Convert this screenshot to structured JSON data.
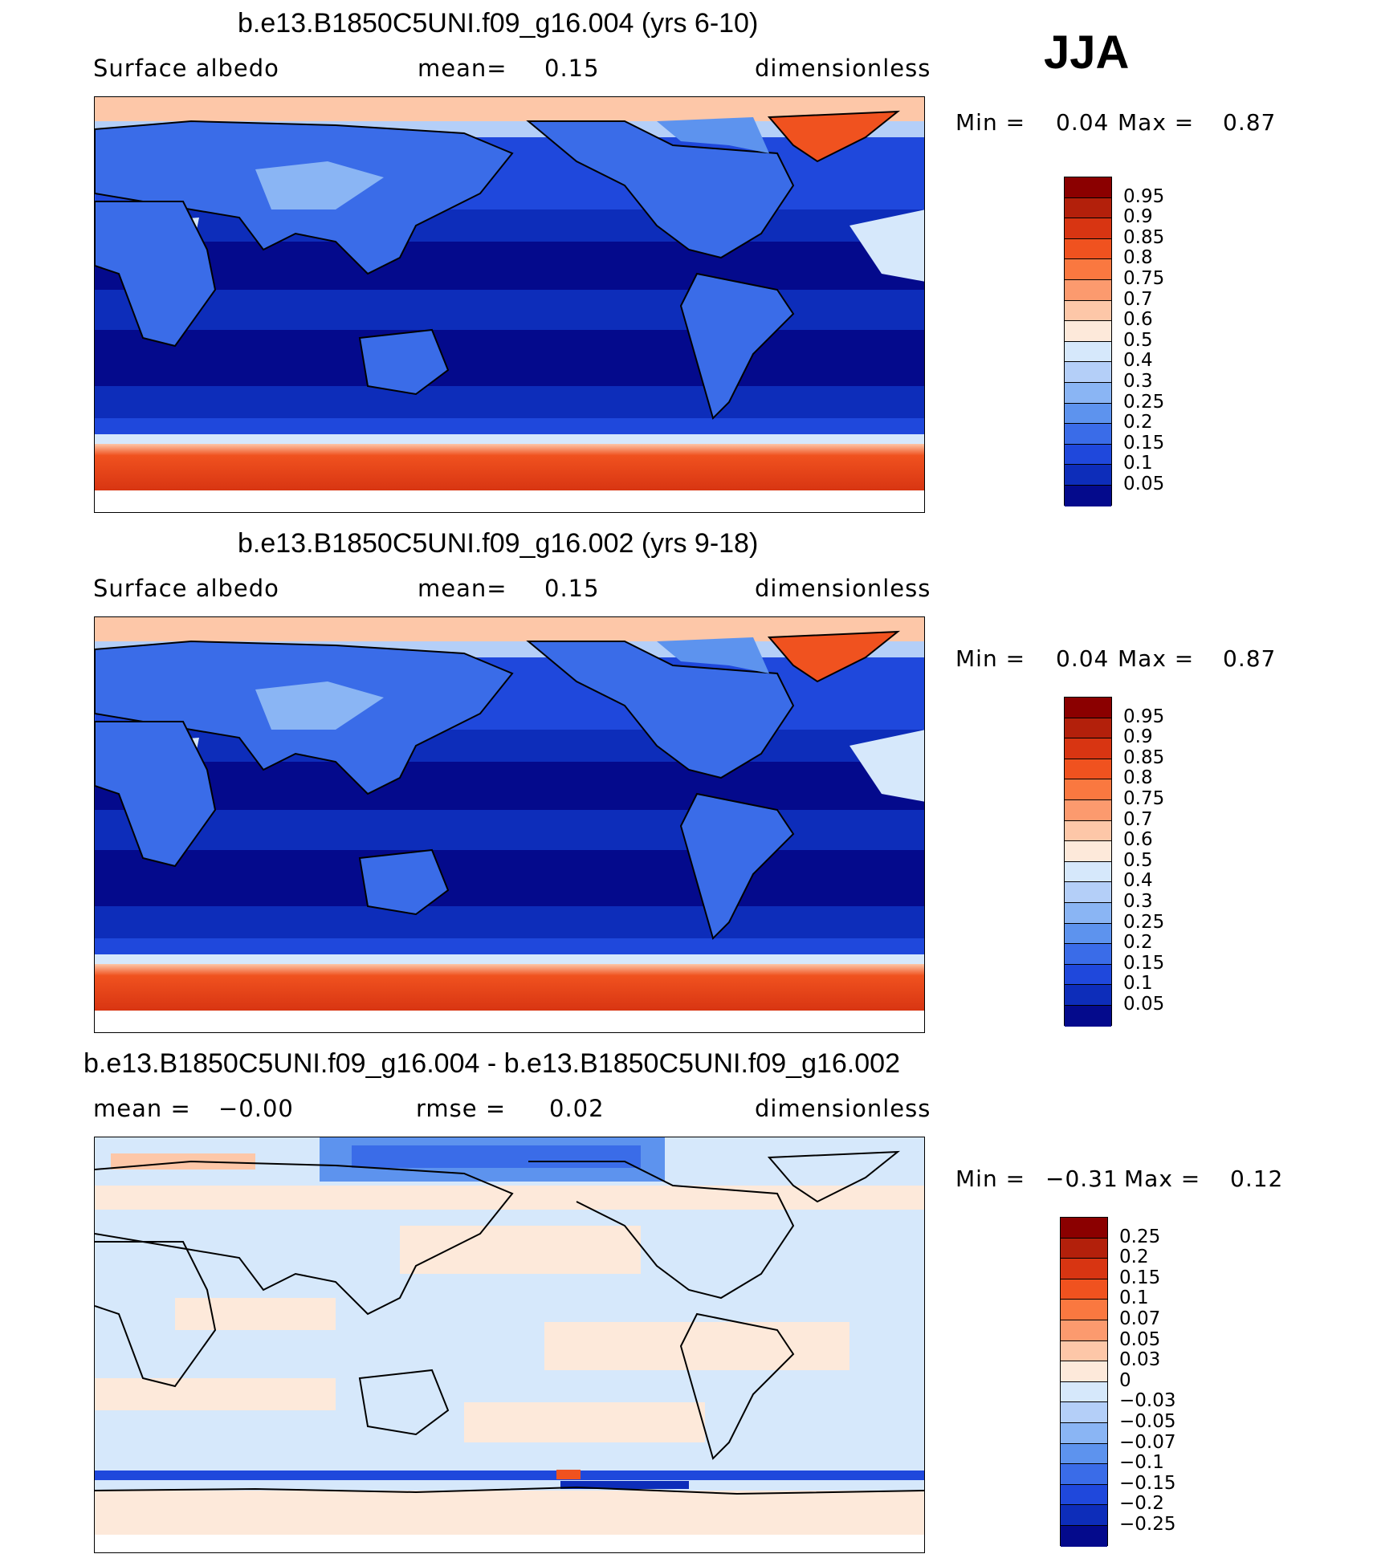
{
  "season": "JJA",
  "panels": [
    {
      "title": "b.e13.B1850C5UNI.f09_g16.004 (yrs 6-10)",
      "variable": "Surface albedo",
      "stat_label": "mean=",
      "stat_value": "0.15",
      "units": "dimensionless",
      "min_label": "Min =",
      "min_value": "0.04",
      "max_label": "Max =",
      "max_value": "0.87"
    },
    {
      "title": "b.e13.B1850C5UNI.f09_g16.002 (yrs 9-18)",
      "variable": "Surface albedo",
      "stat_label": "mean=",
      "stat_value": "0.15",
      "units": "dimensionless",
      "min_label": "Min =",
      "min_value": "0.04",
      "max_label": "Max =",
      "max_value": "0.87"
    },
    {
      "title": "b.e13.B1850C5UNI.f09_g16.004 - b.e13.B1850C5UNI.f09_g16.002",
      "mean_label": "mean =",
      "mean_value": "−0.00",
      "rmse_label": "rmse =",
      "rmse_value": "0.02",
      "units": "dimensionless",
      "min_label": "Min =",
      "min_value": "−0.31",
      "max_label": "Max =",
      "max_value": "0.12"
    }
  ],
  "colorbars": {
    "field": {
      "colors": [
        "#8b0000",
        "#b3200b",
        "#d83512",
        "#f0521f",
        "#fa7840",
        "#fc9a6e",
        "#fdc7a8",
        "#fde9da",
        "#d6e8fb",
        "#b4cff8",
        "#8ab5f4",
        "#5d93ee",
        "#3a6ce8",
        "#1f48dc",
        "#0d2dba",
        "#040a8c"
      ],
      "labels": [
        "0.95",
        "0.9",
        "0.85",
        "0.8",
        "0.75",
        "0.7",
        "0.6",
        "0.5",
        "0.4",
        "0.3",
        "0.25",
        "0.2",
        "0.15",
        "0.1",
        "0.05"
      ]
    },
    "diff": {
      "colors": [
        "#8b0000",
        "#b3200b",
        "#d83512",
        "#f0521f",
        "#fa7840",
        "#fc9a6e",
        "#fdc7a8",
        "#fde9da",
        "#d6e8fb",
        "#b4cff8",
        "#8ab5f4",
        "#5d93ee",
        "#3a6ce8",
        "#1f48dc",
        "#0d2dba",
        "#040a8c"
      ],
      "labels": [
        "0.25",
        "0.2",
        "0.15",
        "0.1",
        "0.07",
        "0.05",
        "0.03",
        "0",
        "−0.03",
        "−0.05",
        "−0.07",
        "−0.1",
        "−0.15",
        "−0.2",
        "−0.25"
      ]
    }
  },
  "map_colors": {
    "ocean_deep": "#040a8c",
    "ocean_mid": "#0d2dba",
    "ocean_light": "#1f48dc",
    "land_low": "#3a6ce8",
    "land_mid": "#5d93ee",
    "land_high": "#b4cff8",
    "snow_pale": "#fdc7a8",
    "ice_orange": "#f0521f",
    "ice_red": "#d83512",
    "diff_pos": "#fde9da",
    "diff_neg": "#d6e8fb"
  }
}
